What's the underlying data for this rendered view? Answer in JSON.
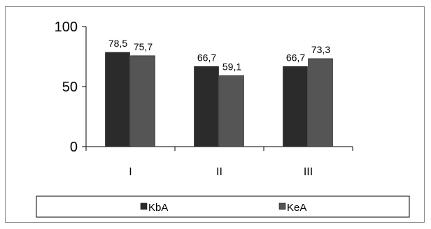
{
  "chart_data": {
    "type": "bar",
    "categories": [
      "I",
      "II",
      "III"
    ],
    "series": [
      {
        "name": "KbA",
        "values": [
          78.5,
          66.7,
          66.7
        ],
        "labels": [
          "78,5",
          "66,7",
          "66,7"
        ],
        "color": "#2b2b2b"
      },
      {
        "name": "KeA",
        "values": [
          75.7,
          59.1,
          73.3
        ],
        "labels": [
          "75,7",
          "59,1",
          "73,3"
        ],
        "color": "#555555"
      }
    ],
    "yticks": [
      {
        "value": 0,
        "label": "0"
      },
      {
        "value": 50,
        "label": "50"
      },
      {
        "value": 100,
        "label": "100"
      }
    ],
    "ylim": [
      0,
      100
    ],
    "grid": false,
    "legend_position": "bottom"
  }
}
